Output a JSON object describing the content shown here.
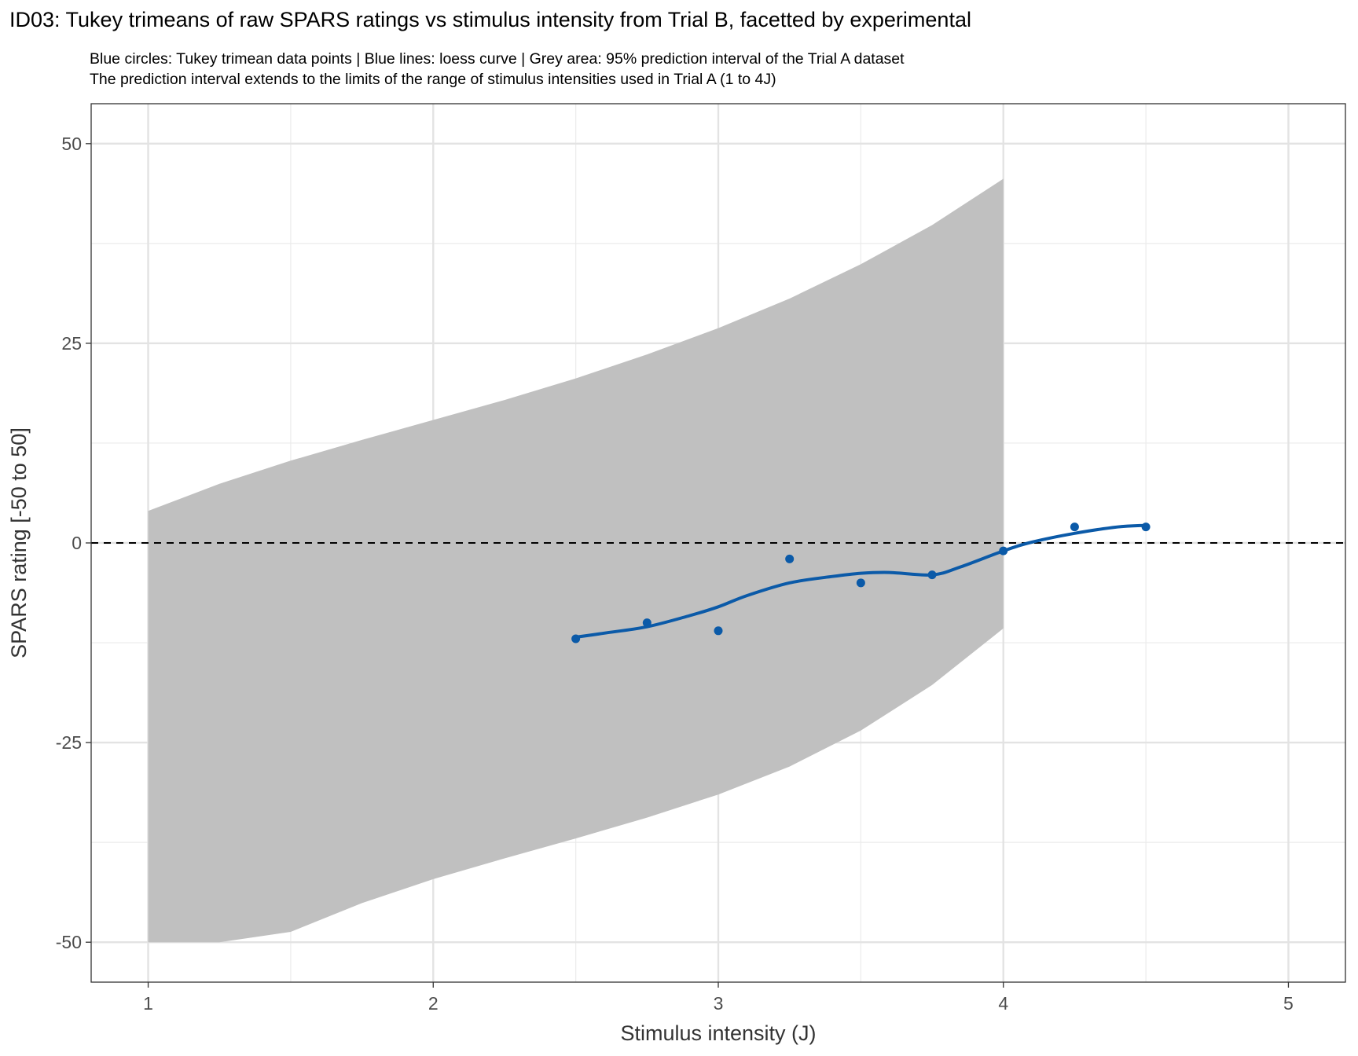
{
  "chart_data": {
    "type": "line",
    "title": "ID03: Tukey trimeans of raw SPARS ratings vs stimulus intensity from Trial B, facetted by experimental",
    "subtitle": [
      "Blue circles: Tukey trimean data points | Blue lines: loess curve | Grey area: 95% prediction interval of the Trial A dataset",
      "The prediction interval extends to the limits of the range of stimulus intensities used in Trial A (1 to 4J)"
    ],
    "xlabel": "Stimulus intensity (J)",
    "ylabel": "SPARS rating [-50 to 50]",
    "xlim": [
      0.8,
      5.2
    ],
    "ylim": [
      -55,
      55
    ],
    "x_ticks": [
      1,
      2,
      3,
      4,
      5
    ],
    "y_ticks": [
      50,
      25,
      0,
      -25,
      -50
    ],
    "y_tick_labels": [
      "50",
      "25",
      "0",
      "-25",
      "-50"
    ],
    "grid": true,
    "reference_line": {
      "y": 0,
      "style": "dashed",
      "color": "#000000"
    },
    "prediction_interval": {
      "color": "#c0c0c0",
      "x": [
        1.0,
        1.25,
        1.5,
        1.75,
        2.0,
        2.25,
        2.5,
        2.75,
        3.0,
        3.25,
        3.5,
        3.75,
        4.0
      ],
      "upper": [
        4.0,
        7.4,
        10.3,
        12.9,
        15.4,
        17.9,
        20.6,
        23.6,
        26.9,
        30.6,
        34.9,
        39.8,
        45.6
      ],
      "lower": [
        -50.0,
        -50.0,
        -48.7,
        -45.1,
        -42.1,
        -39.5,
        -37.0,
        -34.4,
        -31.5,
        -28.0,
        -23.5,
        -17.8,
        -10.7
      ]
    },
    "series": [
      {
        "type": "scatter",
        "color": "#0b5aa8",
        "x": [
          2.5,
          2.75,
          3.0,
          3.25,
          3.5,
          3.75,
          4.0,
          4.25,
          4.5
        ],
        "y": [
          -12.0,
          -10.0,
          -11.0,
          -2.0,
          -5.0,
          -4.0,
          -1.0,
          2.0,
          2.0
        ]
      },
      {
        "type": "line",
        "color": "#0b5aa8",
        "x": [
          2.5,
          2.6,
          2.75,
          2.9,
          3.0,
          3.1,
          3.25,
          3.4,
          3.5,
          3.6,
          3.75,
          3.85,
          4.0,
          4.1,
          4.25,
          4.4,
          4.5
        ],
        "y": [
          -11.8,
          -11.3,
          -10.5,
          -9.1,
          -8.0,
          -6.6,
          -5.0,
          -4.2,
          -3.8,
          -3.7,
          -4.0,
          -3.0,
          -1.0,
          0.1,
          1.2,
          2.0,
          2.2
        ]
      }
    ]
  }
}
